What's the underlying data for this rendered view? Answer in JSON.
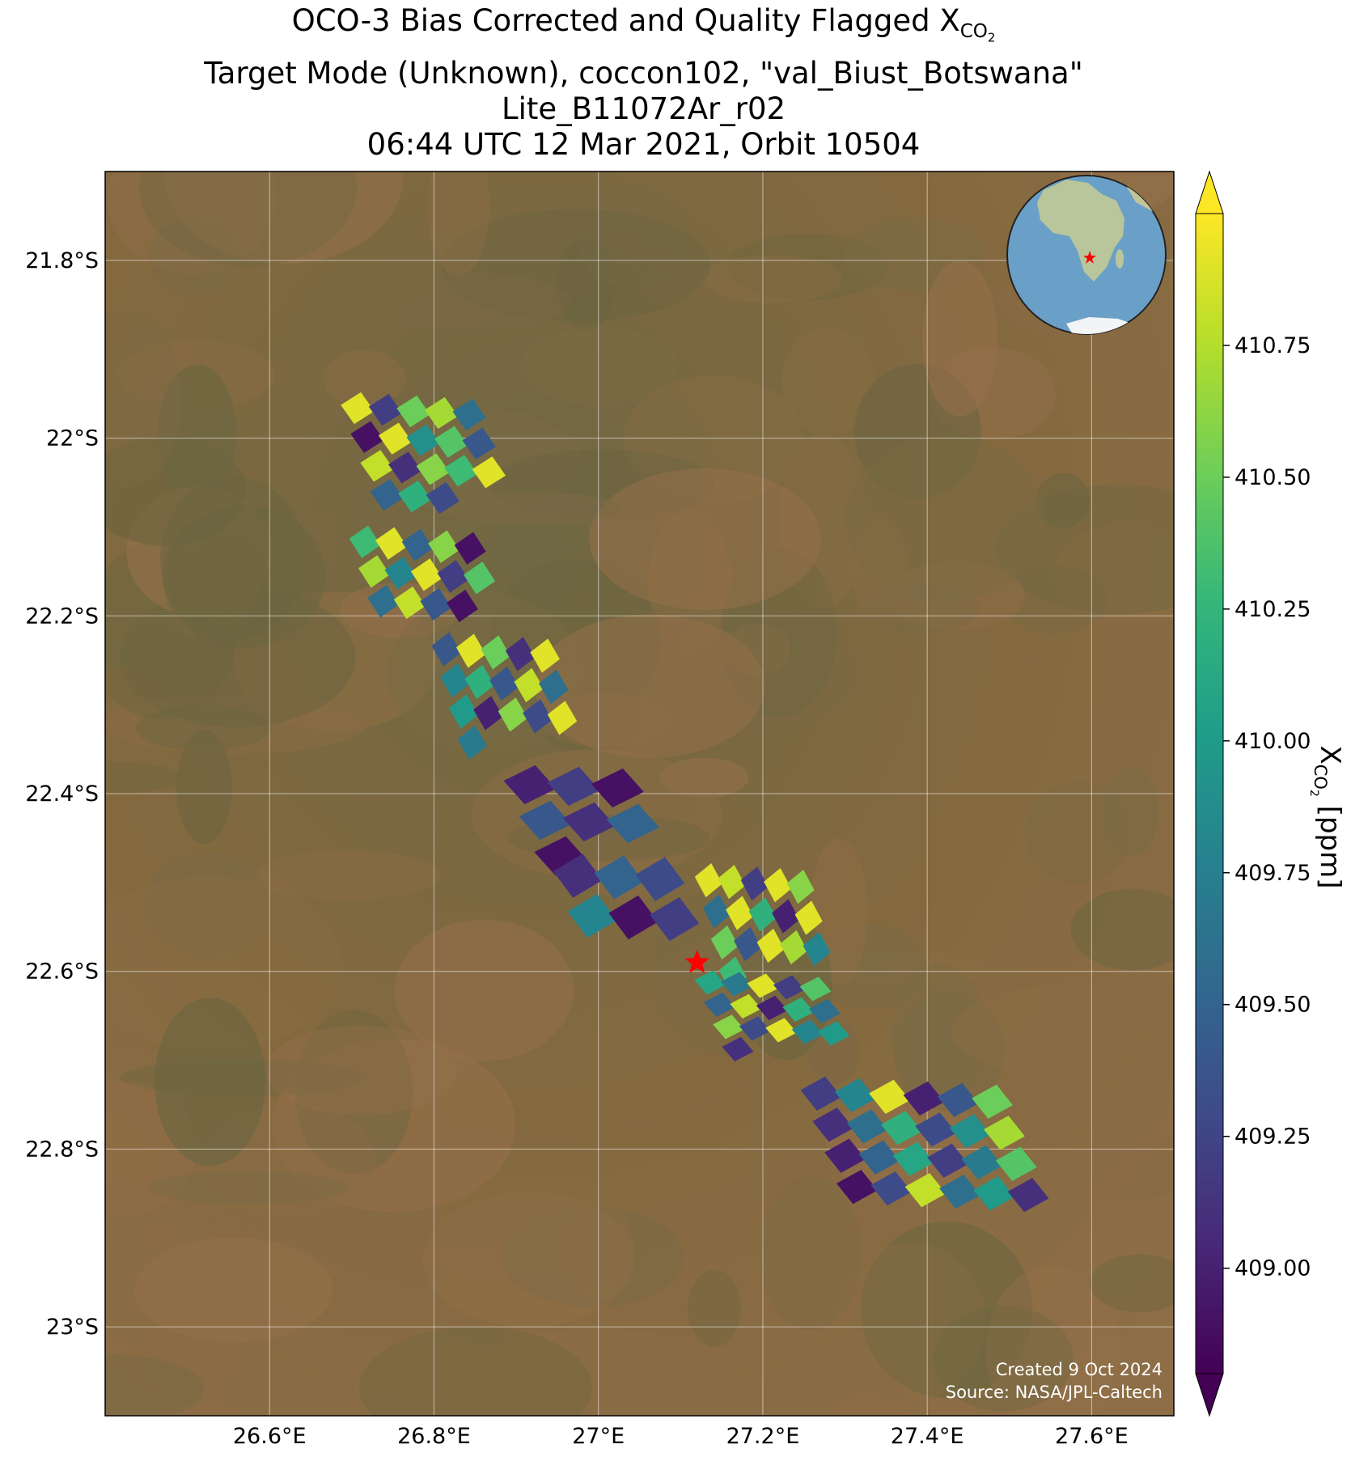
{
  "title": {
    "line1_prefix": "OCO-3 Bias Corrected and Quality Flagged X",
    "line1_sub": "CO",
    "line1_subsub": "2",
    "line2": "Target Mode (Unknown), coccon102, \"val_Biust_Botswana\"",
    "line3": "Lite_B11072Ar_r02",
    "line4": "06:44 UTC 12 Mar 2021, Orbit 10504"
  },
  "map": {
    "lon_range": [
      26.4,
      27.7
    ],
    "lat_range": [
      -23.1,
      -21.7
    ],
    "lon_ticks": [
      26.6,
      26.8,
      27.0,
      27.2,
      27.4,
      27.6
    ],
    "lon_tick_labels": [
      "26.6°E",
      "26.8°E",
      "27°E",
      "27.2°E",
      "27.4°E",
      "27.6°E"
    ],
    "lat_ticks": [
      -21.8,
      -22.0,
      -22.2,
      -22.4,
      -22.6,
      -22.8,
      -23.0
    ],
    "lat_tick_labels": [
      "21.8°S",
      "22°S",
      "22.2°S",
      "22.4°S",
      "22.6°S",
      "22.8°S",
      "23°S"
    ],
    "gridlines": true,
    "site_marker": {
      "lon": 27.12,
      "lat": -22.59,
      "color": "#ff0000"
    },
    "background_colors": [
      "#7a6a45",
      "#8a6c44",
      "#6b6540",
      "#94704a"
    ]
  },
  "soundings": {
    "value_min": 408.8,
    "value_max": 411.0,
    "clusters": [
      {
        "lon": [
          26.69,
          26.86
        ],
        "lat": [
          -21.95,
          -22.08
        ],
        "values": [
          410.9,
          409.2,
          410.5,
          410.7,
          409.6,
          408.9,
          410.9,
          409.9,
          410.4,
          409.4,
          410.8,
          409.1,
          410.6,
          410.3,
          410.9,
          409.5,
          410.2,
          409.3
        ]
      },
      {
        "lon": [
          26.7,
          26.86
        ],
        "lat": [
          -22.1,
          -22.2
        ],
        "values": [
          410.3,
          410.9,
          409.5,
          410.6,
          408.9,
          410.7,
          409.8,
          410.9,
          409.2,
          410.4,
          409.6,
          410.8,
          409.4,
          408.9
        ]
      },
      {
        "lon": [
          26.8,
          26.95
        ],
        "lat": [
          -22.22,
          -22.36
        ],
        "values": [
          409.4,
          410.9,
          410.5,
          409.1,
          410.9,
          409.8,
          410.2,
          409.4,
          410.8,
          409.6,
          410.0,
          409.0,
          410.6,
          409.3,
          410.9,
          409.7
        ]
      },
      {
        "lon": [
          26.89,
          27.05
        ],
        "lat": [
          -22.37,
          -22.49
        ],
        "values": [
          409.0,
          409.2,
          408.9,
          409.4,
          409.1,
          409.5,
          408.9
        ]
      },
      {
        "lon": [
          26.95,
          27.1
        ],
        "lat": [
          -22.47,
          -22.56
        ],
        "values": [
          409.1,
          409.5,
          409.3,
          409.8,
          408.9,
          409.2
        ]
      },
      {
        "lon": [
          27.12,
          27.26
        ],
        "lat": [
          -22.48,
          -22.62
        ],
        "values": [
          410.9,
          410.8,
          409.2,
          410.9,
          410.6,
          409.6,
          410.9,
          410.2,
          409.0,
          410.9,
          410.5,
          409.4,
          410.9,
          410.7,
          409.8,
          410.3
        ]
      },
      {
        "lon": [
          27.12,
          27.28
        ],
        "lat": [
          -22.6,
          -22.7
        ],
        "values": [
          410.1,
          409.7,
          410.9,
          409.2,
          410.4,
          409.5,
          410.8,
          409.0,
          410.2,
          409.6,
          410.6,
          409.3,
          410.9,
          409.8,
          410.0,
          409.1
        ]
      },
      {
        "lon": [
          27.25,
          27.5
        ],
        "lat": [
          -22.72,
          -22.86
        ],
        "values": [
          409.2,
          409.8,
          410.9,
          409.0,
          409.4,
          410.5,
          409.1,
          409.6,
          410.2,
          409.3,
          409.9,
          410.7,
          409.0,
          409.5,
          410.1,
          409.2,
          409.7,
          410.4,
          408.9,
          409.3,
          410.8,
          409.6,
          410.0,
          409.1
        ]
      }
    ]
  },
  "inset": {
    "label": "globe-inset",
    "ocean_color": "#6aa0c8",
    "land_color": "#b9c59a",
    "marker_color": "#ff0000"
  },
  "colorbar": {
    "label_prefix": "X",
    "label_sub": "CO",
    "label_subsub": "2",
    "label_suffix": " [ppm]",
    "ticks": [
      "410.75",
      "410.50",
      "410.25",
      "410.00",
      "409.75",
      "409.50",
      "409.25",
      "409.00"
    ],
    "tick_values": [
      410.75,
      410.5,
      410.25,
      410.0,
      409.75,
      409.5,
      409.25,
      409.0
    ],
    "min": 408.8,
    "max": 411.0,
    "extend": "both"
  },
  "credits": {
    "line1": "Created 9 Oct 2024",
    "line2": "Source: NASA/JPL-Caltech"
  }
}
